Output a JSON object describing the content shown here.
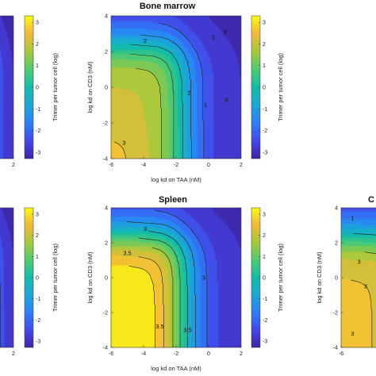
{
  "chart_data": [
    {
      "id": "top-left-partial",
      "type": "heatmap",
      "title": "",
      "xlabel": "",
      "ylabel": "",
      "xlim": [
        -6,
        2
      ],
      "ylim": [
        -4,
        4
      ],
      "x_ticks": [
        {
          "value": 2,
          "label": "2"
        }
      ],
      "y_ticks": [],
      "colorbar": {
        "label": "Trimer per tumor cell (log)",
        "ticks": [
          3,
          2,
          1,
          0,
          -1,
          -2,
          -3
        ],
        "range": [
          -3.3,
          3.3
        ]
      },
      "contour_labels": [
        {
          "text": "1"
        }
      ],
      "surface": {
        "peak": 2.6,
        "corner_peak": 2.6,
        "x_knee": -2,
        "y_knee": 2
      }
    },
    {
      "id": "bone-marrow",
      "type": "heatmap",
      "title": "Bone marrow",
      "xlabel": "log kd on TAA (nM)",
      "ylabel": "log kd on CD3 (nM)",
      "xlim": [
        -6,
        2
      ],
      "ylim": [
        -4,
        4
      ],
      "x_ticks": [
        {
          "value": -6,
          "label": "-6"
        },
        {
          "value": -4,
          "label": "-4"
        },
        {
          "value": -2,
          "label": "-2"
        },
        {
          "value": 0,
          "label": "0"
        },
        {
          "value": 2,
          "label": "2"
        }
      ],
      "y_ticks": [
        {
          "value": -4,
          "label": "-4"
        },
        {
          "value": -2,
          "label": "-2"
        },
        {
          "value": 0,
          "label": "0"
        },
        {
          "value": 2,
          "label": "2"
        },
        {
          "value": 4,
          "label": "4"
        }
      ],
      "colorbar": {
        "label": "Trimer per tumor cell (log)",
        "ticks": [
          3,
          2,
          1,
          0,
          -1,
          -2,
          -3
        ],
        "range": [
          -3.3,
          3.3
        ]
      },
      "contour_labels": [
        {
          "text": "2",
          "x": -3.9,
          "y": 2.6
        },
        {
          "text": "1",
          "x": 0.3,
          "y": 2.8
        },
        {
          "text": "0",
          "x": 1.0,
          "y": 3.1
        },
        {
          "text": "2",
          "x": -1.2,
          "y": -0.3
        },
        {
          "text": "1",
          "x": -0.2,
          "y": -1.0
        },
        {
          "text": "0",
          "x": 1.1,
          "y": -0.7
        },
        {
          "text": "3",
          "x": -5.2,
          "y": -3.1
        }
      ],
      "surface": {
        "peak": 2.6,
        "corner_peak": 3.15,
        "x_knee": -2,
        "y_knee": 2
      }
    },
    {
      "id": "bottom-left-partial",
      "type": "heatmap",
      "title": "",
      "xlabel": "",
      "ylabel": "",
      "xlim": [
        -6,
        2
      ],
      "ylim": [
        -4,
        4
      ],
      "x_ticks": [
        {
          "value": 2,
          "label": "2"
        }
      ],
      "y_ticks": [],
      "colorbar": {
        "label": "Trimer per tumor cell (log)",
        "ticks": [
          3,
          2,
          1,
          0,
          -1,
          -2,
          -3
        ],
        "range": [
          -3.3,
          3.3
        ]
      },
      "contour_labels": [],
      "surface": {
        "peak": 3.2,
        "corner_peak": 3.2,
        "x_knee": -2,
        "y_knee": 2
      }
    },
    {
      "id": "spleen",
      "type": "heatmap",
      "title": "Spleen",
      "xlabel": "log kd on TAA (nM)",
      "ylabel": "log kd on CD3 (nM)",
      "xlim": [
        -6,
        2
      ],
      "ylim": [
        -4,
        4
      ],
      "x_ticks": [
        {
          "value": -6,
          "label": "-6"
        },
        {
          "value": -4,
          "label": "-4"
        },
        {
          "value": -2,
          "label": "-2"
        },
        {
          "value": 0,
          "label": "0"
        },
        {
          "value": 2,
          "label": "2"
        }
      ],
      "y_ticks": [
        {
          "value": -4,
          "label": "-4"
        },
        {
          "value": -2,
          "label": "-2"
        },
        {
          "value": 0,
          "label": "0"
        },
        {
          "value": 2,
          "label": "2"
        },
        {
          "value": 4,
          "label": "4"
        }
      ],
      "colorbar": {
        "label": "Trimer per tumor cell (log)",
        "ticks": [
          3,
          2,
          1,
          0,
          -1,
          -2,
          -3
        ],
        "range": [
          -3.3,
          3.3
        ]
      },
      "contour_labels": [
        {
          "text": "3",
          "x": -3.9,
          "y": 2.8
        },
        {
          "text": "3.5",
          "x": -5.0,
          "y": 1.4
        },
        {
          "text": "3",
          "x": -0.3,
          "y": 0.0
        },
        {
          "text": "3.5",
          "x": -3.0,
          "y": -2.8
        },
        {
          "text": "3.5",
          "x": -1.3,
          "y": -3.0
        }
      ],
      "surface": {
        "peak": 3.9,
        "corner_peak": 3.9,
        "x_knee": -2,
        "y_knee": 2
      }
    },
    {
      "id": "right-partial",
      "type": "heatmap",
      "title": "C",
      "xlabel": "",
      "ylabel": "log kd on CD3 (nM)",
      "xlim": [
        -6,
        2
      ],
      "ylim": [
        -4,
        4
      ],
      "x_ticks": [
        {
          "value": -6,
          "label": "-6"
        }
      ],
      "y_ticks": [
        {
          "value": -4,
          "label": "-4"
        },
        {
          "value": -2,
          "label": "-2"
        },
        {
          "value": 0,
          "label": "0"
        },
        {
          "value": 2,
          "label": "2"
        },
        {
          "value": 4,
          "label": "4"
        }
      ],
      "colorbar": null,
      "contour_labels": [
        {
          "text": "1",
          "x": -5.3,
          "y": 3.4
        },
        {
          "text": "3",
          "x": -4.9,
          "y": 0.9
        },
        {
          "text": "3",
          "x": -4.5,
          "y": -0.5
        },
        {
          "text": "3",
          "x": -5.3,
          "y": -3.2
        }
      ],
      "surface": {
        "peak": 3.1,
        "corner_peak": 3.1,
        "x_knee": -2,
        "y_knee": 2
      }
    }
  ]
}
